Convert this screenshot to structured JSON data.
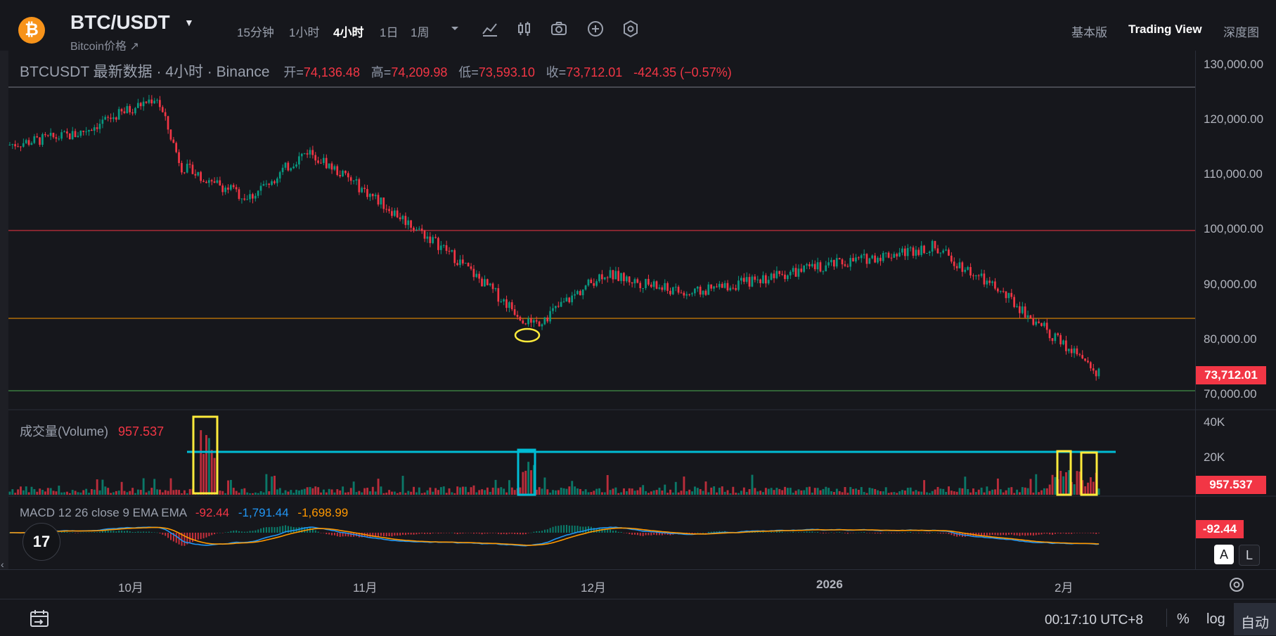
{
  "header": {
    "coin_icon": "bitcoin-logo-icon",
    "symbol": "BTC/USDT",
    "subtitle": "Bitcoin价格 ↗",
    "timeframes": [
      "15分钟",
      "1小时",
      "4小时",
      "1日",
      "1周"
    ],
    "active_timeframe": "4小时",
    "tools": [
      "timeframe-dropdown-icon",
      "indicators-icon",
      "candle-type-icon",
      "camera-icon",
      "add-icon",
      "settings-icon"
    ],
    "views": [
      "基本版",
      "Trading View",
      "深度图"
    ],
    "active_view": "Trading View"
  },
  "legend": {
    "title": "BTCUSDT 最新数据 · 4小时 · Binance",
    "open_label": "开=",
    "open": "74,136.48",
    "high_label": "高=",
    "high": "74,209.98",
    "low_label": "低=",
    "low": "73,593.10",
    "close_label": "收=",
    "close": "73,712.01",
    "change": "-424.35 (−0.57%)"
  },
  "volume": {
    "label": "成交量(Volume)",
    "value": "957.537"
  },
  "macd": {
    "label": "MACD 12 26 close 9 EMA EMA",
    "v1": "-92.44",
    "v2": "-1,791.44",
    "v3": "-1,698.99"
  },
  "price_axis": [
    "130,000.00",
    "120,000.00",
    "110,000.00",
    "100,000.00",
    "90,000.00",
    "80,000.00",
    "70,000.00"
  ],
  "volume_axis": [
    "40K",
    "20K"
  ],
  "badges": {
    "price": "73,712.01",
    "volume": "957.537",
    "macd": "-92.44"
  },
  "time_axis": [
    "10月",
    "11月",
    "12月",
    "2026",
    "2月"
  ],
  "bottom": {
    "clock": "00:17:10 UTC+8",
    "percent": "%",
    "log": "log",
    "auto": "自动",
    "a": "A",
    "l": "L",
    "tv_logo": "17"
  },
  "colors": {
    "up": "#089981",
    "down": "#f23645",
    "bg": "#16171c",
    "accent_line": "#00bcd4",
    "highlight": "#ffeb3b"
  },
  "chart_data": {
    "type": "candlestick",
    "title": "BTCUSDT 最新数据 · 4小时 · Binance",
    "x_ticks": [
      "10月",
      "11月",
      "12月",
      "2026",
      "2月"
    ],
    "ylim": [
      70000,
      130000
    ],
    "approx_close_path": [
      {
        "x": "9月下旬",
        "y": 116000
      },
      {
        "x": "10月初",
        "y": 118000
      },
      {
        "x": "10月6日",
        "y": 125000
      },
      {
        "x": "10月10日",
        "y": 112000
      },
      {
        "x": "10月中旬",
        "y": 106000
      },
      {
        "x": "10月下旬",
        "y": 115000
      },
      {
        "x": "11月初",
        "y": 108000
      },
      {
        "x": "11月中旬",
        "y": 96000
      },
      {
        "x": "11月21日",
        "y": 82000
      },
      {
        "x": "12月初",
        "y": 92000
      },
      {
        "x": "12月中旬",
        "y": 88000
      },
      {
        "x": "1月初",
        "y": 93000
      },
      {
        "x": "1月中旬",
        "y": 97000
      },
      {
        "x": "1月下旬",
        "y": 88000
      },
      {
        "x": "2月初",
        "y": 73712
      }
    ],
    "horizontal_levels": [
      {
        "value": 126000,
        "color": "#787b86"
      },
      {
        "value": 100000,
        "color": "#f23645"
      },
      {
        "value": 84000,
        "color": "#ff9800"
      },
      {
        "value": 71000,
        "color": "#4caf50"
      }
    ]
  }
}
